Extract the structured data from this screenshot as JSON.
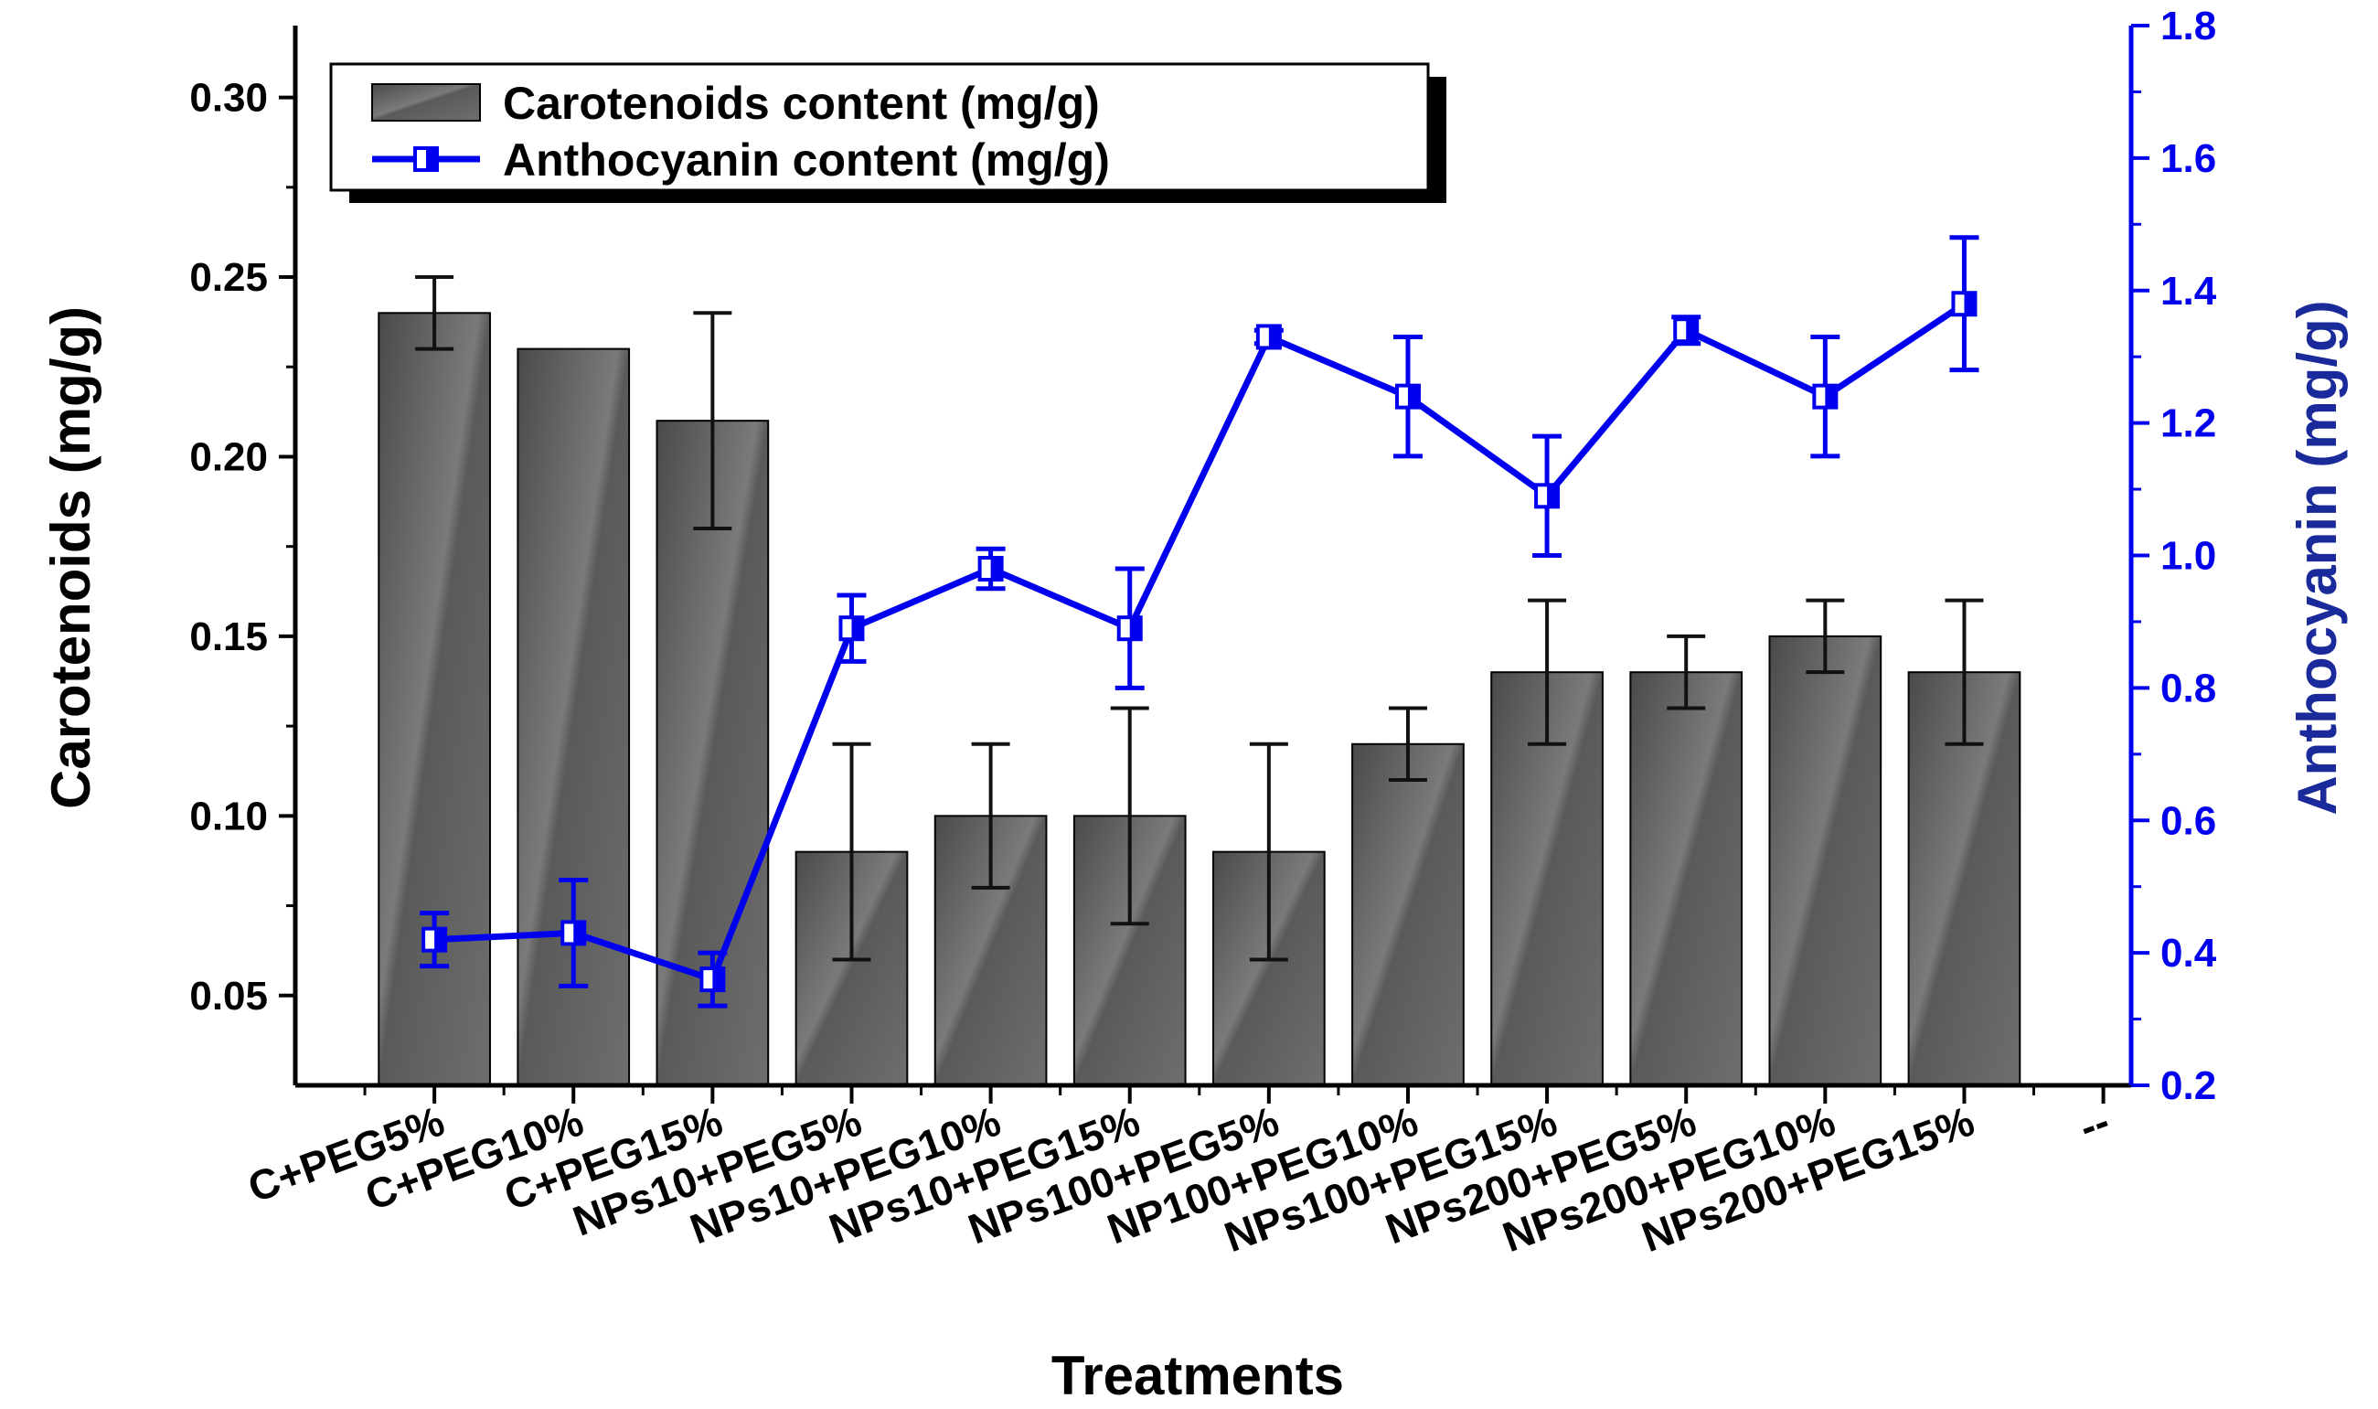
{
  "chart_data": {
    "type": "bar+line",
    "xlabel": "Treatments",
    "ylabel_left": "Carotenoids (mg/g)",
    "ylabel_right": "Anthocyanin (mg/g)",
    "categories": [
      "C+PEG5%",
      "C+PEG10%",
      "C+PEG15%",
      "NPs10+PEG5%",
      "NPs10+PEG10%",
      "NPs10+PEG15%",
      "NPs100+PEG5%",
      "NP100+PEG10%",
      "NPs100+PEG15%",
      "NPs200+PEG5%",
      "NPs200+PEG10%",
      "NPs200+PEG15%"
    ],
    "extra_tick_label": "--",
    "ylim_left": [
      0.025,
      0.32
    ],
    "ylim_right": [
      0.2,
      1.8
    ],
    "yticks_left": [
      "0.05",
      "0.10",
      "0.15",
      "0.20",
      "0.25",
      "0.30"
    ],
    "yticks_right": [
      "0.2",
      "0.4",
      "0.6",
      "0.8",
      "1.0",
      "1.2",
      "1.4",
      "1.6",
      "1.8"
    ],
    "legend_position": "top-left",
    "series": [
      {
        "name": "Carotenoids content (mg/g)",
        "type": "bar",
        "axis": "left",
        "color": "#555555",
        "values": [
          0.24,
          0.23,
          0.21,
          0.09,
          0.1,
          0.1,
          0.09,
          0.12,
          0.14,
          0.14,
          0.15,
          0.14
        ],
        "errors": [
          0.01,
          0.0,
          0.03,
          0.03,
          0.02,
          0.03,
          0.03,
          0.01,
          0.02,
          0.01,
          0.01,
          0.02
        ]
      },
      {
        "name": "Anthocyanin content (mg/g)",
        "type": "line",
        "axis": "right",
        "color": "#0000ee",
        "values": [
          0.42,
          0.43,
          0.36,
          0.89,
          0.98,
          0.89,
          1.33,
          1.24,
          1.09,
          1.34,
          1.24,
          1.38
        ],
        "errors": [
          0.04,
          0.08,
          0.04,
          0.05,
          0.03,
          0.09,
          0.01,
          0.09,
          0.09,
          0.02,
          0.09,
          0.1
        ]
      }
    ]
  }
}
